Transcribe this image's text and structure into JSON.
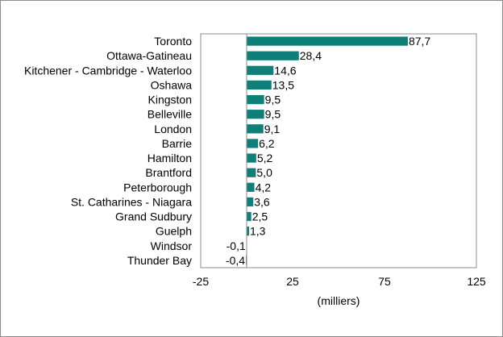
{
  "chart_data": {
    "type": "bar",
    "orientation": "horizontal",
    "categories": [
      "Toronto",
      "Ottawa-Gatineau",
      "Kitchener - Cambridge - Waterloo",
      "Oshawa",
      "Kingston",
      "Belleville",
      "London",
      "Barrie",
      "Hamilton",
      "Brantford",
      "Peterborough",
      "St. Catharines - Niagara",
      "Grand Sudbury",
      "Guelph",
      "Windsor",
      "Thunder Bay"
    ],
    "values": [
      87.7,
      28.4,
      14.6,
      13.5,
      9.5,
      9.5,
      9.1,
      6.2,
      5.2,
      5.0,
      4.2,
      3.6,
      2.5,
      1.3,
      -0.1,
      -0.4
    ],
    "value_labels": [
      "87,7",
      "28,4",
      "14,6",
      "13,5",
      "9,5",
      "9,5",
      "9,1",
      "6,2",
      "5,2",
      "5,0",
      "4,2",
      "3,6",
      "2,5",
      "1,3",
      "-0,1",
      "-0,4"
    ],
    "xlim": [
      -25,
      125
    ],
    "x_ticks": [
      -25,
      25,
      75,
      125
    ],
    "x_tick_labels": [
      "-25",
      "25",
      "75",
      "125"
    ],
    "xlabel": "(milliers)",
    "ylabel": "",
    "title": "",
    "grid": false,
    "legend": "none",
    "bar_color": "#0f7f7a"
  }
}
